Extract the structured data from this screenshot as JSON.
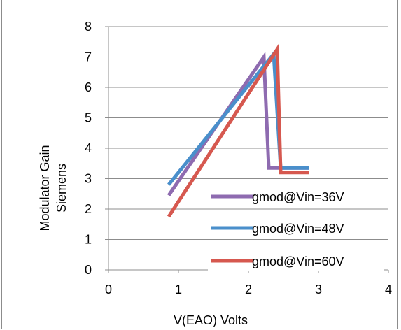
{
  "chart_data": {
    "type": "line",
    "title": "",
    "xlabel": "V(EAO) Volts",
    "ylabel_lines": [
      "Modulator Gain",
      "Siemens"
    ],
    "xlim": [
      0,
      4
    ],
    "ylim": [
      0,
      8
    ],
    "x_ticks": [
      "0",
      "1",
      "2",
      "3",
      "4"
    ],
    "y_ticks": [
      "0",
      "1",
      "2",
      "3",
      "4",
      "5",
      "6",
      "7",
      "8"
    ],
    "grid": "horizontal",
    "legend_position": "bottom-right",
    "series": [
      {
        "name": "gmod@Vin=36V",
        "color": "#8E6BB0",
        "points": [
          [
            0.86,
            2.45
          ],
          [
            2.22,
            7.0
          ],
          [
            2.29,
            3.35
          ],
          [
            2.86,
            3.35
          ]
        ]
      },
      {
        "name": "gmod@Vin=48V",
        "color": "#4A8FCB",
        "points": [
          [
            0.86,
            2.8
          ],
          [
            2.36,
            7.1
          ],
          [
            2.46,
            3.35
          ],
          [
            2.86,
            3.35
          ]
        ]
      },
      {
        "name": "gmod@Vin=60V",
        "color": "#D6584F",
        "points": [
          [
            0.86,
            1.75
          ],
          [
            2.41,
            7.25
          ],
          [
            2.46,
            3.2
          ],
          [
            2.86,
            3.2
          ]
        ]
      }
    ]
  }
}
